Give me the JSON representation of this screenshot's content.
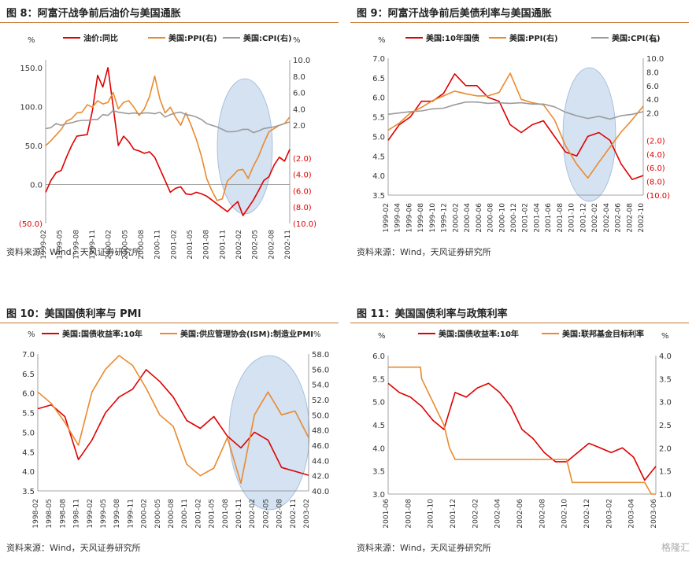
{
  "source_text": "资料来源：Wind，天风证券研究所",
  "watermark": "格隆汇",
  "colors": {
    "red": "#e00000",
    "orange": "#ea8a2e",
    "gray": "#9b9b9b",
    "ellipse": "#c5d8ee",
    "title_rule": "#c87832"
  },
  "chart_data": [
    {
      "id": "fig8",
      "type": "line",
      "title": "图 8：阿富汗战争前后油价与美国通胀",
      "left_unit": "%",
      "right_unit": "%",
      "left_ticks": [
        "150.0",
        "100.0",
        "50.0",
        "0.0",
        "(50.0)"
      ],
      "left_ylim": [
        -50,
        160
      ],
      "right_ticks": [
        "10.0",
        "8.0",
        "6.0",
        "4.0",
        "2.0",
        "(2.0)",
        "(4.0)",
        "(6.0)",
        "(8.0)",
        "(10.0)"
      ],
      "right_ylim": [
        -10,
        10
      ],
      "x_labels": [
        "1999-02",
        "1999-05",
        "1999-08",
        "1999-11",
        "2000-02",
        "2000-05",
        "2000-08",
        "2000-11",
        "2001-02",
        "2001-05",
        "2001-08",
        "2001-11",
        "2002-02",
        "2002-05",
        "2002-08",
        "2002-11"
      ],
      "x_range": [
        0,
        47
      ],
      "shaded_period": [
        "2001-10",
        "2002-05"
      ],
      "series": [
        {
          "name": "油价:同比",
          "axis": "left",
          "color": "red",
          "x": [
            0,
            1,
            2,
            3,
            4,
            5,
            6,
            7,
            8,
            9,
            10,
            11,
            12,
            13,
            14,
            15,
            16,
            17,
            18,
            19,
            20,
            21,
            22,
            23,
            24,
            25,
            26,
            27,
            28,
            29,
            30,
            31,
            32,
            33,
            34,
            35,
            36,
            37,
            38,
            39,
            40,
            41,
            42,
            43,
            44,
            45,
            46,
            47
          ],
          "y": [
            -10,
            5,
            15,
            18,
            35,
            50,
            62,
            63,
            64,
            95,
            140,
            125,
            150,
            100,
            50,
            62,
            55,
            45,
            43,
            40,
            42,
            35,
            20,
            5,
            -10,
            -5,
            -3,
            -12,
            -13,
            -10,
            -12,
            -15,
            -20,
            -25,
            -30,
            -35,
            -28,
            -22,
            -40,
            -30,
            -20,
            -8,
            5,
            10,
            25,
            35,
            30,
            45
          ]
        },
        {
          "name": "美国:PPI(右)",
          "axis": "right",
          "color": "orange",
          "x": [
            0,
            1,
            2,
            3,
            4,
            5,
            6,
            7,
            8,
            9,
            10,
            11,
            12,
            13,
            14,
            15,
            16,
            17,
            18,
            19,
            20,
            21,
            22,
            23,
            24,
            25,
            26,
            27,
            28,
            29,
            30,
            31,
            32,
            33,
            34,
            35,
            36,
            37,
            38,
            39,
            40,
            41,
            42,
            43,
            44,
            45,
            46,
            47
          ],
          "y": [
            -0.5,
            0.1,
            0.8,
            1.5,
            2.5,
            2.8,
            3.5,
            3.6,
            4.5,
            4.2,
            5.0,
            4.6,
            4.8,
            6.0,
            4.0,
            4.8,
            5.0,
            4.2,
            3.2,
            4.0,
            5.5,
            8.0,
            5.2,
            3.5,
            4.2,
            3.0,
            2.0,
            3.5,
            2.0,
            0.3,
            -1.8,
            -4.5,
            -6.0,
            -7.2,
            -7.0,
            -4.8,
            -4.2,
            -3.5,
            -3.4,
            -4.5,
            -3.0,
            -1.8,
            -0.2,
            1.2,
            1.6,
            2.0,
            2.2,
            3.0
          ]
        },
        {
          "name": "美国:CPI(右)",
          "axis": "right",
          "color": "gray",
          "x": [
            0,
            1,
            2,
            3,
            4,
            5,
            6,
            7,
            8,
            9,
            10,
            11,
            12,
            13,
            14,
            15,
            16,
            17,
            18,
            19,
            20,
            21,
            22,
            23,
            24,
            25,
            26,
            27,
            28,
            29,
            30,
            31,
            32,
            33,
            34,
            35,
            36,
            37,
            38,
            39,
            40,
            41,
            42,
            43,
            44,
            45,
            46,
            47
          ],
          "y": [
            1.6,
            1.7,
            2.2,
            2.0,
            2.2,
            2.3,
            2.5,
            2.6,
            2.6,
            2.7,
            2.7,
            3.3,
            3.2,
            3.8,
            3.6,
            3.5,
            3.4,
            3.5,
            3.4,
            3.5,
            3.5,
            3.4,
            3.6,
            3.0,
            3.3,
            3.5,
            3.6,
            3.3,
            3.2,
            3.0,
            2.7,
            2.2,
            2.0,
            1.8,
            1.5,
            1.2,
            1.2,
            1.3,
            1.5,
            1.5,
            1.1,
            1.3,
            1.6,
            1.7,
            1.8,
            2.0,
            2.2,
            2.4
          ]
        }
      ]
    },
    {
      "id": "fig9",
      "type": "line",
      "title": "图 9：阿富汗战争前后美债利率与美国通胀",
      "left_unit": "%",
      "right_unit": "%",
      "left_ticks": [
        "7.0",
        "6.5",
        "6.0",
        "5.5",
        "5.0",
        "4.5",
        "4.0",
        "3.5"
      ],
      "left_ylim": [
        3.5,
        7.0
      ],
      "right_ticks": [
        "10.0",
        "8.0",
        "6.0",
        "4.0",
        "2.0",
        "(2.0)",
        "(4.0)",
        "(6.0)",
        "(8.0)",
        "(10.0)"
      ],
      "right_ylim": [
        -10,
        10
      ],
      "x_labels": [
        "1999-02",
        "1999-04",
        "1999-06",
        "1999-08",
        "1999-10",
        "1999-12",
        "2000-02",
        "2000-04",
        "2000-06",
        "2000-08",
        "2000-10",
        "2000-12",
        "2001-02",
        "2001-04",
        "2001-06",
        "2001-08",
        "2001-10",
        "2001-12",
        "2002-02",
        "2002-04",
        "2002-06",
        "2002-08",
        "2002-10"
      ],
      "x_range": [
        0,
        46
      ],
      "shaded_period": [
        "2001-10",
        "2002-05"
      ],
      "series": [
        {
          "name": "美国:10年国债",
          "axis": "left",
          "color": "red",
          "x": [
            0,
            2,
            4,
            6,
            8,
            10,
            12,
            14,
            16,
            18,
            20,
            22,
            24,
            26,
            28,
            30,
            32,
            34,
            36,
            38,
            40,
            42,
            44,
            46
          ],
          "y": [
            4.9,
            5.3,
            5.5,
            5.9,
            5.9,
            6.1,
            6.6,
            6.3,
            6.3,
            6.0,
            5.9,
            5.3,
            5.1,
            5.3,
            5.4,
            5.0,
            4.6,
            4.5,
            5.0,
            5.1,
            4.9,
            4.3,
            3.9,
            4.0
          ]
        },
        {
          "name": "美国:PPI(右)",
          "axis": "right",
          "color": "orange",
          "x": [
            0,
            2,
            4,
            6,
            8,
            10,
            12,
            14,
            16,
            18,
            20,
            22,
            24,
            26,
            28,
            30,
            32,
            34,
            36,
            38,
            40,
            42,
            44,
            46
          ],
          "y": [
            -0.5,
            0.5,
            2.0,
            2.8,
            3.8,
            4.5,
            5.2,
            4.8,
            4.5,
            4.5,
            5.0,
            7.8,
            4.0,
            3.5,
            3.2,
            1.0,
            -2.8,
            -5.5,
            -7.5,
            -5.2,
            -3.0,
            -0.8,
            1.0,
            3.0
          ]
        },
        {
          "name": "美国:CPI(右)",
          "axis": "right",
          "color": "gray",
          "x": [
            0,
            2,
            4,
            6,
            8,
            10,
            12,
            14,
            16,
            18,
            20,
            22,
            24,
            26,
            28,
            30,
            32,
            34,
            36,
            38,
            40,
            42,
            44,
            46
          ],
          "y": [
            1.8,
            2.0,
            2.2,
            2.3,
            2.6,
            2.7,
            3.2,
            3.6,
            3.6,
            3.4,
            3.5,
            3.4,
            3.5,
            3.3,
            3.3,
            2.9,
            2.1,
            1.6,
            1.2,
            1.5,
            1.1,
            1.6,
            1.8,
            2.2
          ]
        }
      ]
    },
    {
      "id": "fig10",
      "type": "line",
      "title": "图 10：美国国债利率与 PMI",
      "left_unit": "%",
      "right_unit": "%",
      "left_ticks": [
        "7.0",
        "6.5",
        "6.0",
        "5.5",
        "5.0",
        "4.5",
        "4.0",
        "3.5"
      ],
      "left_ylim": [
        3.5,
        7.0
      ],
      "right_ticks": [
        "58.0",
        "56.0",
        "54.0",
        "52.0",
        "50.0",
        "48.0",
        "46.0",
        "44.0",
        "42.0",
        "40.0"
      ],
      "right_ylim": [
        40,
        58
      ],
      "x_labels": [
        "1998-02",
        "1998-05",
        "1998-08",
        "1998-11",
        "1999-02",
        "1999-05",
        "1999-08",
        "1999-11",
        "2000-02",
        "2000-05",
        "2000-08",
        "2000-11",
        "2001-02",
        "2001-05",
        "2001-08",
        "2001-11",
        "2002-02",
        "2002-05",
        "2002-08",
        "2002-11",
        "2003-02"
      ],
      "x_range": [
        0,
        60
      ],
      "shaded_period": [
        "2001-11",
        "2002-10"
      ],
      "series": [
        {
          "name": "美国:国债收益率:10年",
          "axis": "left",
          "color": "red",
          "x": [
            0,
            3,
            6,
            9,
            12,
            15,
            18,
            21,
            24,
            27,
            30,
            33,
            36,
            39,
            42,
            45,
            48,
            51,
            54,
            57,
            60
          ],
          "y": [
            5.6,
            5.7,
            5.4,
            4.3,
            4.8,
            5.5,
            5.9,
            6.1,
            6.6,
            6.3,
            5.9,
            5.3,
            5.1,
            5.4,
            4.9,
            4.6,
            5.0,
            4.8,
            4.1,
            4.0,
            3.9
          ]
        },
        {
          "name": "美国:供应管理协会(ISM):制造业PMI",
          "axis": "right",
          "color": "orange",
          "x": [
            0,
            3,
            6,
            9,
            12,
            15,
            18,
            21,
            24,
            27,
            30,
            33,
            36,
            39,
            42,
            45,
            48,
            51,
            54,
            57,
            60
          ],
          "y": [
            53.0,
            51.5,
            49.0,
            46.0,
            53.0,
            56.0,
            57.8,
            56.5,
            53.5,
            50.0,
            48.5,
            43.5,
            42.0,
            43.0,
            47.0,
            41.0,
            50.0,
            53.0,
            50.0,
            50.5,
            47.0
          ]
        }
      ]
    },
    {
      "id": "fig11",
      "type": "line",
      "title": "图 11：美国国债利率与政策利率",
      "left_unit": "%",
      "right_unit": "%",
      "left_ticks": [
        "6.0",
        "5.5",
        "5.0",
        "4.5",
        "4.0",
        "3.5",
        "3.0"
      ],
      "left_ylim": [
        3.0,
        6.0
      ],
      "right_ticks": [
        "4.0",
        "3.5",
        "3.0",
        "2.5",
        "2.0",
        "1.5",
        "1.0"
      ],
      "right_ylim": [
        1.0,
        4.0
      ],
      "x_labels": [
        "2001-06",
        "2001-08",
        "2001-10",
        "2001-12",
        "2002-02",
        "2002-04",
        "2002-06",
        "2002-08",
        "2002-10",
        "2002-12",
        "2003-02",
        "2003-04",
        "2003-06"
      ],
      "x_range": [
        0,
        24
      ],
      "series": [
        {
          "name": "美国:国债收益率:10年",
          "axis": "left",
          "color": "red",
          "x": [
            0,
            1,
            2,
            3,
            4,
            5,
            6,
            7,
            8,
            9,
            10,
            11,
            12,
            13,
            14,
            15,
            16,
            17,
            18,
            19,
            20,
            21,
            22,
            23,
            24
          ],
          "y": [
            5.4,
            5.2,
            5.1,
            4.9,
            4.6,
            4.4,
            5.2,
            5.1,
            5.3,
            5.4,
            5.2,
            4.9,
            4.4,
            4.2,
            3.9,
            3.7,
            3.7,
            3.9,
            4.1,
            4.0,
            3.9,
            4.0,
            3.8,
            3.3,
            3.6
          ]
        },
        {
          "name": "美国:联邦基金目标利率",
          "axis": "right",
          "color": "orange",
          "x": [
            0,
            2.9,
            3,
            4,
            5,
            5.5,
            6,
            7,
            8,
            9,
            10,
            11,
            12,
            13,
            14,
            15,
            16,
            16.5,
            17,
            18,
            19,
            20,
            21,
            22,
            23,
            23.6,
            24
          ],
          "y": [
            3.75,
            3.75,
            3.5,
            3.0,
            2.5,
            2.0,
            1.75,
            1.75,
            1.75,
            1.75,
            1.75,
            1.75,
            1.75,
            1.75,
            1.75,
            1.75,
            1.75,
            1.25,
            1.25,
            1.25,
            1.25,
            1.25,
            1.25,
            1.25,
            1.25,
            1.0,
            1.0
          ]
        }
      ]
    }
  ]
}
